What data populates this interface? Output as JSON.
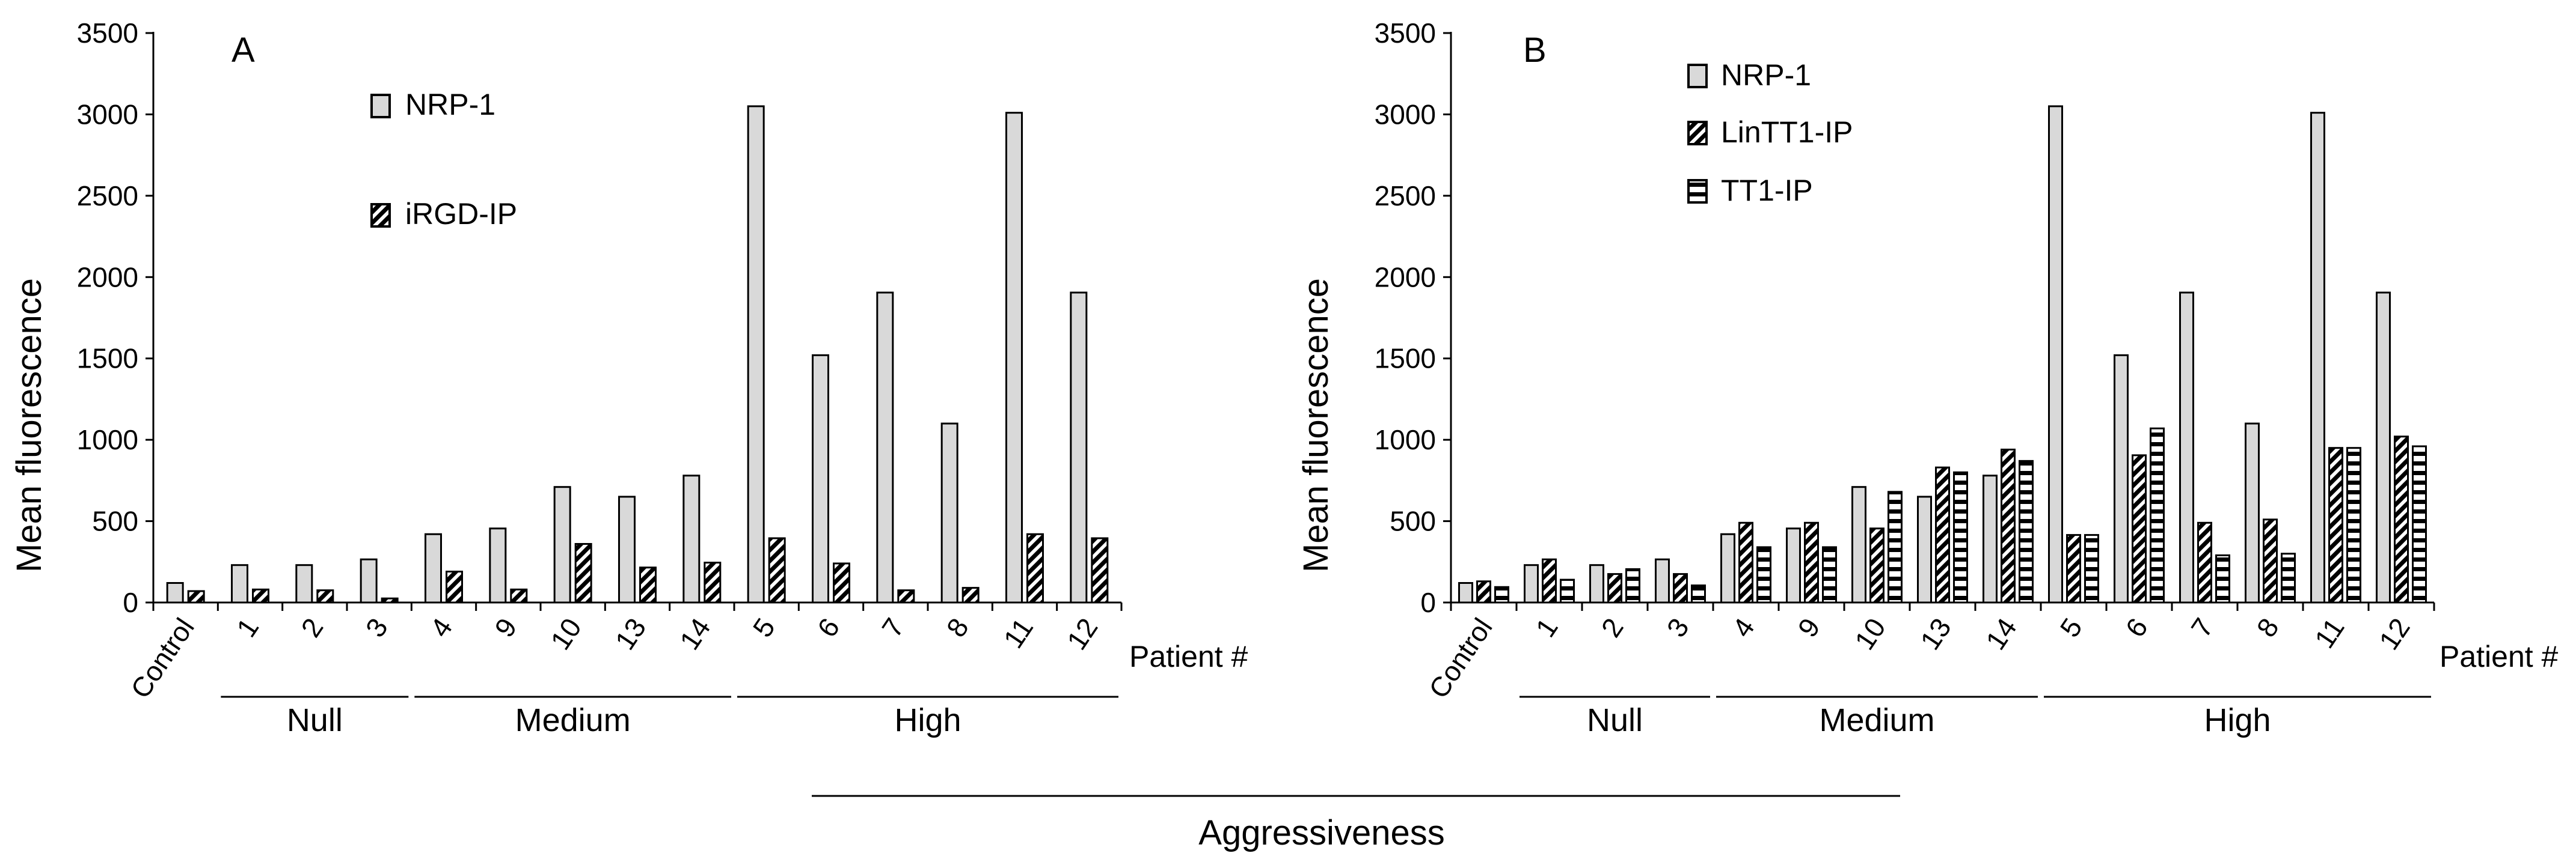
{
  "chart_data": [
    {
      "type": "bar",
      "panel_label": "A",
      "ylabel": "Mean fluorescence",
      "xlabel": "Patient #",
      "ylim": [
        0,
        3500
      ],
      "yticks": [
        0,
        500,
        1000,
        1500,
        2000,
        2500,
        3000,
        3500
      ],
      "grid": false,
      "categories": [
        "Control",
        "1",
        "2",
        "3",
        "4",
        "9",
        "10",
        "13",
        "14",
        "5",
        "6",
        "7",
        "8",
        "11",
        "12"
      ],
      "series": [
        {
          "name": "NRP-1",
          "pattern": "solid-gray",
          "values": [
            120,
            230,
            230,
            265,
            420,
            455,
            710,
            650,
            780,
            3050,
            1520,
            1905,
            1100,
            3010,
            1905
          ]
        },
        {
          "name": "iRGD-IP",
          "pattern": "diagonal",
          "values": [
            70,
            80,
            75,
            25,
            190,
            80,
            360,
            215,
            245,
            395,
            240,
            75,
            90,
            420,
            395
          ]
        }
      ],
      "groups": [
        {
          "label": "Null",
          "from": "1",
          "to": "3"
        },
        {
          "label": "Medium",
          "from": "4",
          "to": "14"
        },
        {
          "label": "High",
          "from": "5",
          "to": "12"
        }
      ]
    },
    {
      "type": "bar",
      "panel_label": "B",
      "ylabel": "Mean fluorescence",
      "xlabel": "Patient #",
      "ylim": [
        0,
        3500
      ],
      "yticks": [
        0,
        500,
        1000,
        1500,
        2000,
        2500,
        3000,
        3500
      ],
      "grid": false,
      "categories": [
        "Control",
        "1",
        "2",
        "3",
        "4",
        "9",
        "10",
        "13",
        "14",
        "5",
        "6",
        "7",
        "8",
        "11",
        "12"
      ],
      "series": [
        {
          "name": "NRP-1",
          "pattern": "solid-gray",
          "values": [
            120,
            230,
            230,
            265,
            420,
            455,
            710,
            650,
            780,
            3050,
            1520,
            1905,
            1100,
            3010,
            1905
          ]
        },
        {
          "name": "LinTT1-IP",
          "pattern": "diagonal",
          "values": [
            130,
            265,
            175,
            175,
            490,
            490,
            455,
            830,
            940,
            415,
            905,
            490,
            510,
            950,
            1020
          ]
        },
        {
          "name": "TT1-IP",
          "pattern": "horizontal",
          "values": [
            95,
            140,
            205,
            105,
            340,
            340,
            680,
            800,
            870,
            415,
            1070,
            290,
            300,
            950,
            960
          ]
        }
      ],
      "groups": [
        {
          "label": "Null",
          "from": "1",
          "to": "3"
        },
        {
          "label": "Medium",
          "from": "4",
          "to": "14"
        },
        {
          "label": "High",
          "from": "5",
          "to": "12"
        }
      ]
    }
  ],
  "footer": {
    "label": "Aggressiveness"
  }
}
